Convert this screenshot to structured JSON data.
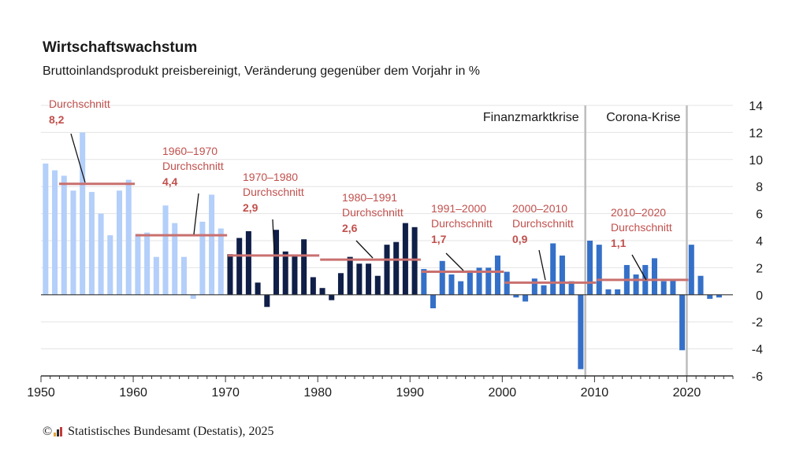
{
  "title": "Wirtschaftswachstum",
  "subtitle": "Bruttoinlandsprodukt preisbereinigt, Veränderung gegenüber dem Vorjahr in %",
  "footer": {
    "copyright_symbol": "©",
    "source": "Statistisches Bundesamt (Destatis), 2025"
  },
  "colors": {
    "period1": "#b3cffa",
    "period2": "#0f1f48",
    "period3": "#3570c8",
    "average_line": "#c9706f",
    "annotation_text": "#c0504d",
    "crisis_line": "#bdbdbd",
    "grid": "#e3e3e3",
    "axis": "#333333"
  },
  "chart_data": {
    "type": "bar",
    "x": [
      1951,
      1952,
      1953,
      1954,
      1955,
      1956,
      1957,
      1958,
      1959,
      1960,
      1961,
      1962,
      1963,
      1964,
      1965,
      1966,
      1967,
      1968,
      1969,
      1970,
      1971,
      1972,
      1973,
      1974,
      1975,
      1976,
      1977,
      1978,
      1979,
      1980,
      1981,
      1982,
      1983,
      1984,
      1985,
      1986,
      1987,
      1988,
      1989,
      1990,
      1991,
      1992,
      1993,
      1994,
      1995,
      1996,
      1997,
      1998,
      1999,
      2000,
      2001,
      2002,
      2003,
      2004,
      2005,
      2006,
      2007,
      2008,
      2009,
      2010,
      2011,
      2012,
      2013,
      2014,
      2015,
      2016,
      2017,
      2018,
      2019,
      2020,
      2021,
      2022,
      2023,
      2024
    ],
    "values": [
      9.7,
      9.2,
      8.8,
      7.7,
      12.0,
      7.6,
      6.0,
      4.4,
      7.7,
      8.5,
      4.5,
      4.6,
      2.8,
      6.6,
      5.3,
      2.8,
      -0.3,
      5.4,
      7.4,
      4.9,
      3.0,
      4.2,
      4.7,
      0.9,
      -0.9,
      4.8,
      3.2,
      2.9,
      4.1,
      1.3,
      0.5,
      -0.4,
      1.6,
      2.8,
      2.3,
      2.3,
      1.4,
      3.7,
      3.9,
      5.3,
      5.0,
      1.9,
      -1.0,
      2.5,
      1.5,
      1.0,
      1.8,
      2.0,
      2.0,
      2.9,
      1.7,
      -0.2,
      -0.5,
      1.2,
      0.7,
      3.8,
      2.9,
      1.0,
      -5.5,
      4.0,
      3.7,
      0.4,
      0.4,
      2.2,
      1.5,
      2.2,
      2.7,
      1.0,
      1.1,
      -4.1,
      3.7,
      1.4,
      -0.3,
      -0.2
    ],
    "periods": [
      {
        "from": 1951,
        "to": 1970,
        "color_key": "period1"
      },
      {
        "from": 1971,
        "to": 1991,
        "color_key": "period2"
      },
      {
        "from": 1992,
        "to": 2024,
        "color_key": "period3"
      }
    ],
    "averages": [
      {
        "from": 1950,
        "to": 1960,
        "value": 8.2,
        "value_label": "8,2",
        "period_label": "",
        "avg_label": "Durchschnitt"
      },
      {
        "from": 1960,
        "to": 1970,
        "value": 4.4,
        "value_label": "4,4",
        "period_label": "1960–1970",
        "avg_label": "Durchschnitt"
      },
      {
        "from": 1970,
        "to": 1980,
        "value": 2.9,
        "value_label": "2,9",
        "period_label": "1970–1980",
        "avg_label": "Durchschnitt"
      },
      {
        "from": 1980,
        "to": 1991,
        "value": 2.6,
        "value_label": "2,6",
        "period_label": "1980–1991",
        "avg_label": "Durchschnitt"
      },
      {
        "from": 1991,
        "to": 2000,
        "value": 1.7,
        "value_label": "1,7",
        "period_label": "1991–2000",
        "avg_label": "Durchschnitt"
      },
      {
        "from": 2000,
        "to": 2010,
        "value": 0.9,
        "value_label": "0,9",
        "period_label": "2000–2010",
        "avg_label": "Durchschnitt"
      },
      {
        "from": 2010,
        "to": 2020,
        "value": 1.1,
        "value_label": "1,1",
        "period_label": "2010–2020",
        "avg_label": "Durchschnitt"
      }
    ],
    "crisis_markers": [
      {
        "year": 2009,
        "label": "Finanzmarktkrise",
        "label_side": "left"
      },
      {
        "year": 2020,
        "label": "Corona-Krise",
        "label_side": "left"
      }
    ],
    "ylim": [
      -6,
      14
    ],
    "yticks": [
      -6,
      -4,
      -2,
      0,
      2,
      4,
      6,
      8,
      10,
      12,
      14
    ],
    "xticks": [
      1950,
      1960,
      1970,
      1980,
      1990,
      2000,
      2010,
      2020
    ],
    "xlim": [
      1950,
      2025
    ],
    "grid": true,
    "ylabel_side": "right",
    "xlabel": "",
    "ylabel": ""
  }
}
